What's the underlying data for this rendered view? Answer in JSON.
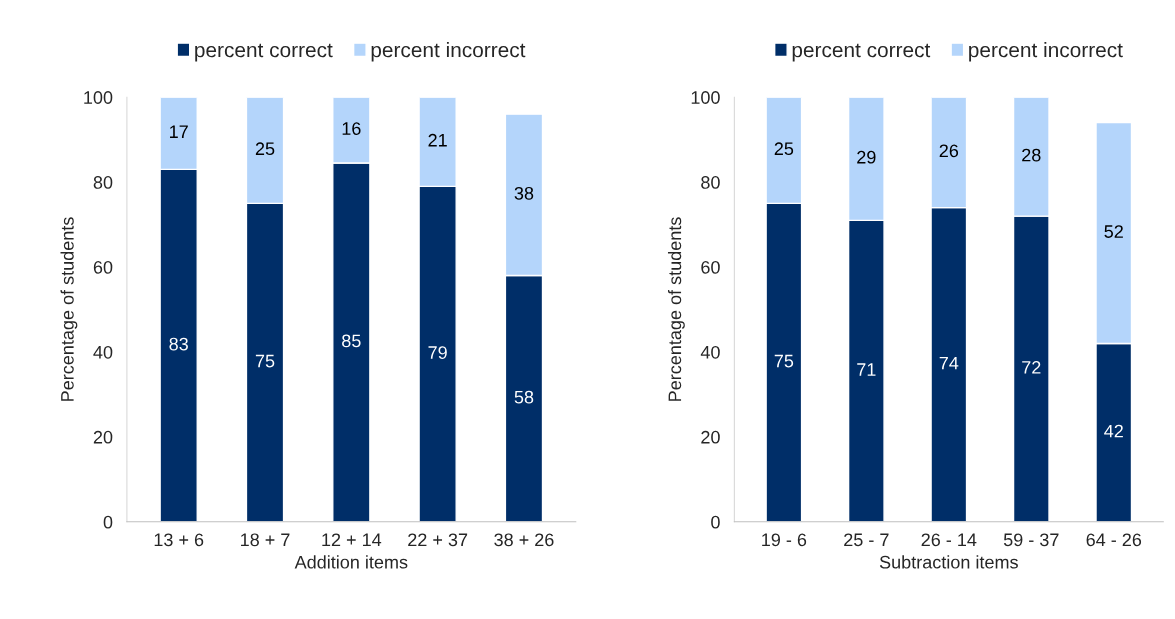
{
  "chart_data": [
    {
      "type": "bar",
      "stacked": true,
      "xlabel": "Addition items",
      "ylabel": "Percentage of students",
      "categories": [
        "13 + 6",
        "18 + 7",
        "12 + 14",
        "22 + 37",
        "38 + 26"
      ],
      "ylim": [
        0,
        100
      ],
      "yticks": [
        0,
        20,
        40,
        60,
        80,
        100
      ],
      "legend": "top",
      "grid": false,
      "series": [
        {
          "name": "percent correct",
          "color": "#002e68",
          "values": [
            83,
            75,
            84.5,
            79,
            58
          ],
          "value_labels": [
            "83",
            "75",
            "85",
            "79",
            "58"
          ]
        },
        {
          "name": "percent incorrect",
          "color": "#b4d5fb",
          "values": [
            17,
            25,
            15.5,
            21,
            38
          ],
          "value_labels": [
            "17",
            "25",
            "16",
            "21",
            "38"
          ]
        }
      ]
    },
    {
      "type": "bar",
      "stacked": true,
      "xlabel": "Subtraction items",
      "ylabel": "Percentage of students",
      "categories": [
        "19 - 6",
        "25 - 7",
        "26 - 14",
        "59 - 37",
        "64 - 26"
      ],
      "ylim": [
        0,
        100
      ],
      "yticks": [
        0,
        20,
        40,
        60,
        80,
        100
      ],
      "legend": "top",
      "grid": false,
      "series": [
        {
          "name": "percent correct",
          "color": "#002e68",
          "values": [
            75,
            71,
            74,
            72,
            42
          ],
          "value_labels": [
            "75",
            "71",
            "74",
            "72",
            "42"
          ]
        },
        {
          "name": "percent incorrect",
          "color": "#b4d5fb",
          "values": [
            25,
            29,
            26,
            28,
            52
          ],
          "value_labels": [
            "25",
            "29",
            "26",
            "28",
            "52"
          ]
        }
      ]
    }
  ]
}
